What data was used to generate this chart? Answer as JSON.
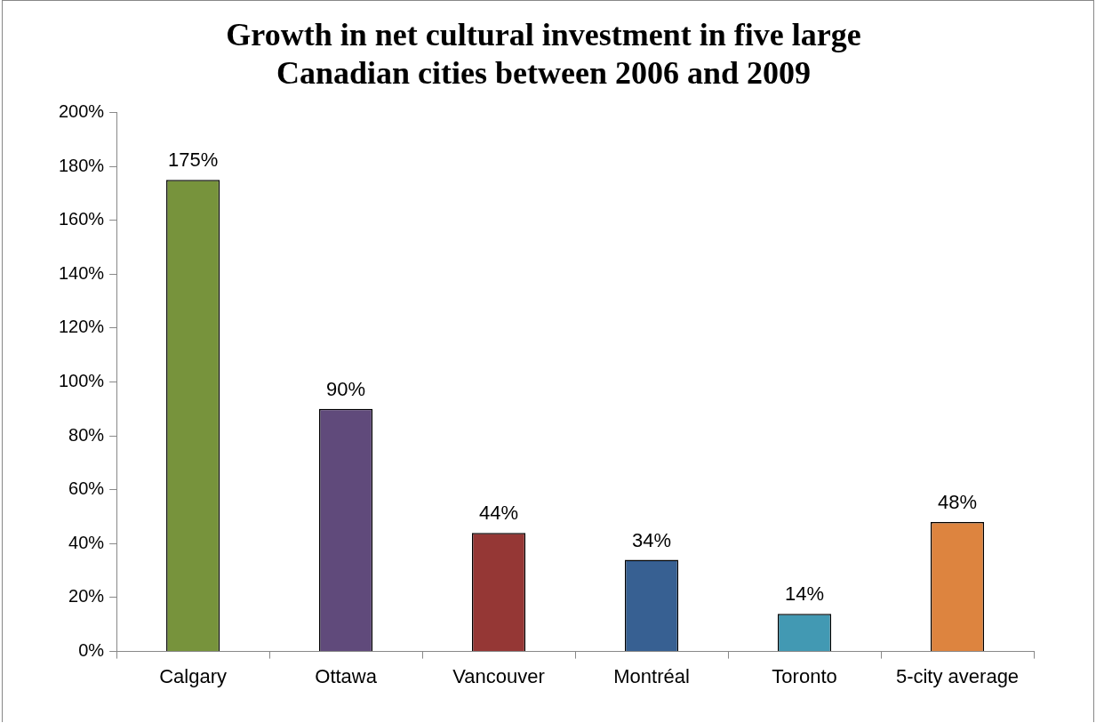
{
  "chart_data": {
    "type": "bar",
    "title": "Growth in net cultural investment in five large Canadian cities between 2006 and 2009",
    "categories": [
      "Calgary",
      "Ottawa",
      "Vancouver",
      "Montréal",
      "Toronto",
      "5-city average"
    ],
    "values": [
      175,
      90,
      44,
      34,
      14,
      48
    ],
    "colors": [
      "#77933c",
      "#604a7b",
      "#953735",
      "#376092",
      "#4299b3",
      "#dd843f"
    ],
    "value_labels": [
      "175%",
      "90%",
      "44%",
      "34%",
      "14%",
      "48%"
    ],
    "ylim": [
      0,
      200
    ],
    "yticks": [
      {
        "value": 0,
        "label": "0%"
      },
      {
        "value": 20,
        "label": "20%"
      },
      {
        "value": 40,
        "label": "40%"
      },
      {
        "value": 60,
        "label": "60%"
      },
      {
        "value": 80,
        "label": "80%"
      },
      {
        "value": 100,
        "label": "100%"
      },
      {
        "value": 120,
        "label": "120%"
      },
      {
        "value": 140,
        "label": "140%"
      },
      {
        "value": 160,
        "label": "160%"
      },
      {
        "value": 180,
        "label": "180%"
      },
      {
        "value": 200,
        "label": "200%"
      }
    ],
    "grid": false,
    "legend": false
  }
}
